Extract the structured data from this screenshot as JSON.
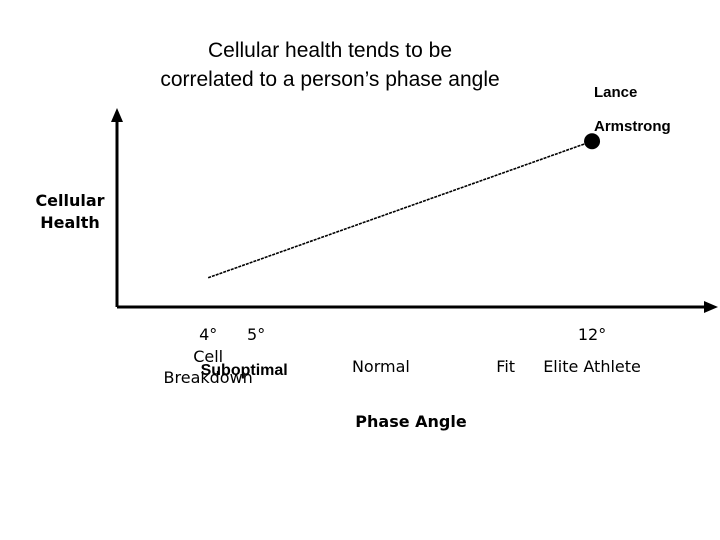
{
  "chart_data": {
    "type": "line",
    "title_lines": [
      "Cellular health tends to be",
      "correlated to a person’s phase angle"
    ],
    "xlabel": "Phase Angle",
    "ylabel_lines": [
      "Cellular",
      "Health"
    ],
    "x": [
      4,
      12
    ],
    "y": [
      0.15,
      0.85
    ],
    "xlim": [
      2.1,
      14.5
    ],
    "ylim": [
      0,
      1
    ],
    "degree_ticks": [
      {
        "value": 4,
        "label": "4°"
      },
      {
        "value": 5,
        "label": "5°"
      },
      {
        "value": 12,
        "label": "12°"
      }
    ],
    "categories": [
      {
        "value": 4,
        "lines": [
          "Cell",
          "Breakdown"
        ],
        "style": "normal"
      },
      {
        "value": 5,
        "lines": [
          "Suboptimal"
        ],
        "style": "sub"
      },
      {
        "value": 7.6,
        "lines": [
          "Normal"
        ],
        "style": "normal"
      },
      {
        "value": 10.2,
        "lines": [
          "Fit"
        ],
        "style": "normal"
      },
      {
        "value": 12,
        "lines": [
          "Elite Athlete"
        ],
        "style": "normal"
      }
    ],
    "annotation": {
      "lines": [
        "Lance",
        "Armstrong"
      ],
      "x": 12,
      "y": 0.85
    },
    "grid": false,
    "legend": "none"
  }
}
